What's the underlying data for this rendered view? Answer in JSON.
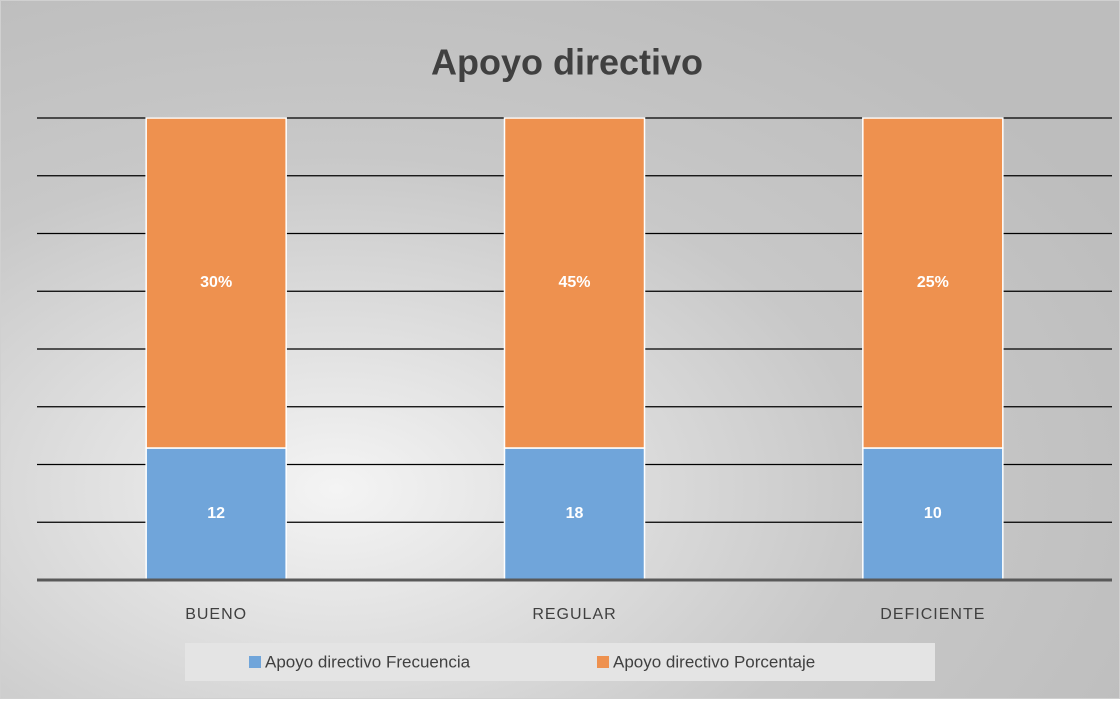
{
  "chart_data": {
    "type": "bar",
    "stacking": "percent",
    "title": "Apoyo directivo",
    "categories": [
      "BUENO",
      "REGULAR",
      "DEFICIENTE"
    ],
    "series": [
      {
        "name": "Apoyo directivo Frecuencia",
        "color": "#70a5da",
        "values": [
          12,
          18,
          10
        ]
      },
      {
        "name": "Apoyo directivo Porcentaje",
        "color": "#ee914f",
        "values": [
          30,
          45,
          25
        ],
        "value_labels": [
          "30%",
          "45%",
          "25%"
        ]
      }
    ],
    "ylim": [
      0,
      100
    ],
    "yticks": [
      0,
      12.5,
      25,
      37.5,
      50,
      62.5,
      75,
      87.5,
      100
    ],
    "grid": true,
    "legend": "bottom"
  }
}
